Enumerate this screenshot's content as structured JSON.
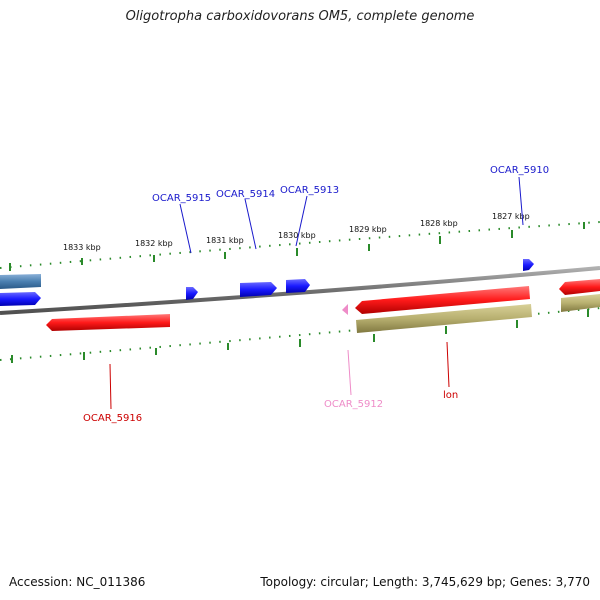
{
  "title": "Oligotropha carboxidovorans OM5, complete genome",
  "footer": {
    "accession": "Accession: NC_011386",
    "summary": "Topology: circular; Length: 3,745,629 bp; Genes: 3,770"
  },
  "ruler": {
    "labels": [
      "1833 kbp",
      "1832 kbp",
      "1831 kbp",
      "1830 kbp",
      "1829 kbp",
      "1828 kbp",
      "1827 kbp"
    ]
  },
  "genes": {
    "ocar_5910": "OCAR_5910",
    "ocar_5913": "OCAR_5913",
    "ocar_5914": "OCAR_5914",
    "ocar_5915": "OCAR_5915",
    "ocar_5916": "OCAR_5916",
    "ocar_5912": "OCAR_5912",
    "lon": "lon"
  },
  "colors": {
    "forward_gene": "#1a1aff",
    "reverse_gene": "#ff1a1a",
    "pseudo_gene": "#ee8cc8",
    "rna_gene": "#b8b070",
    "backbone": "#808080",
    "ticks": "#2a8a2a",
    "steelblue_gene": "#4a7fb0"
  }
}
